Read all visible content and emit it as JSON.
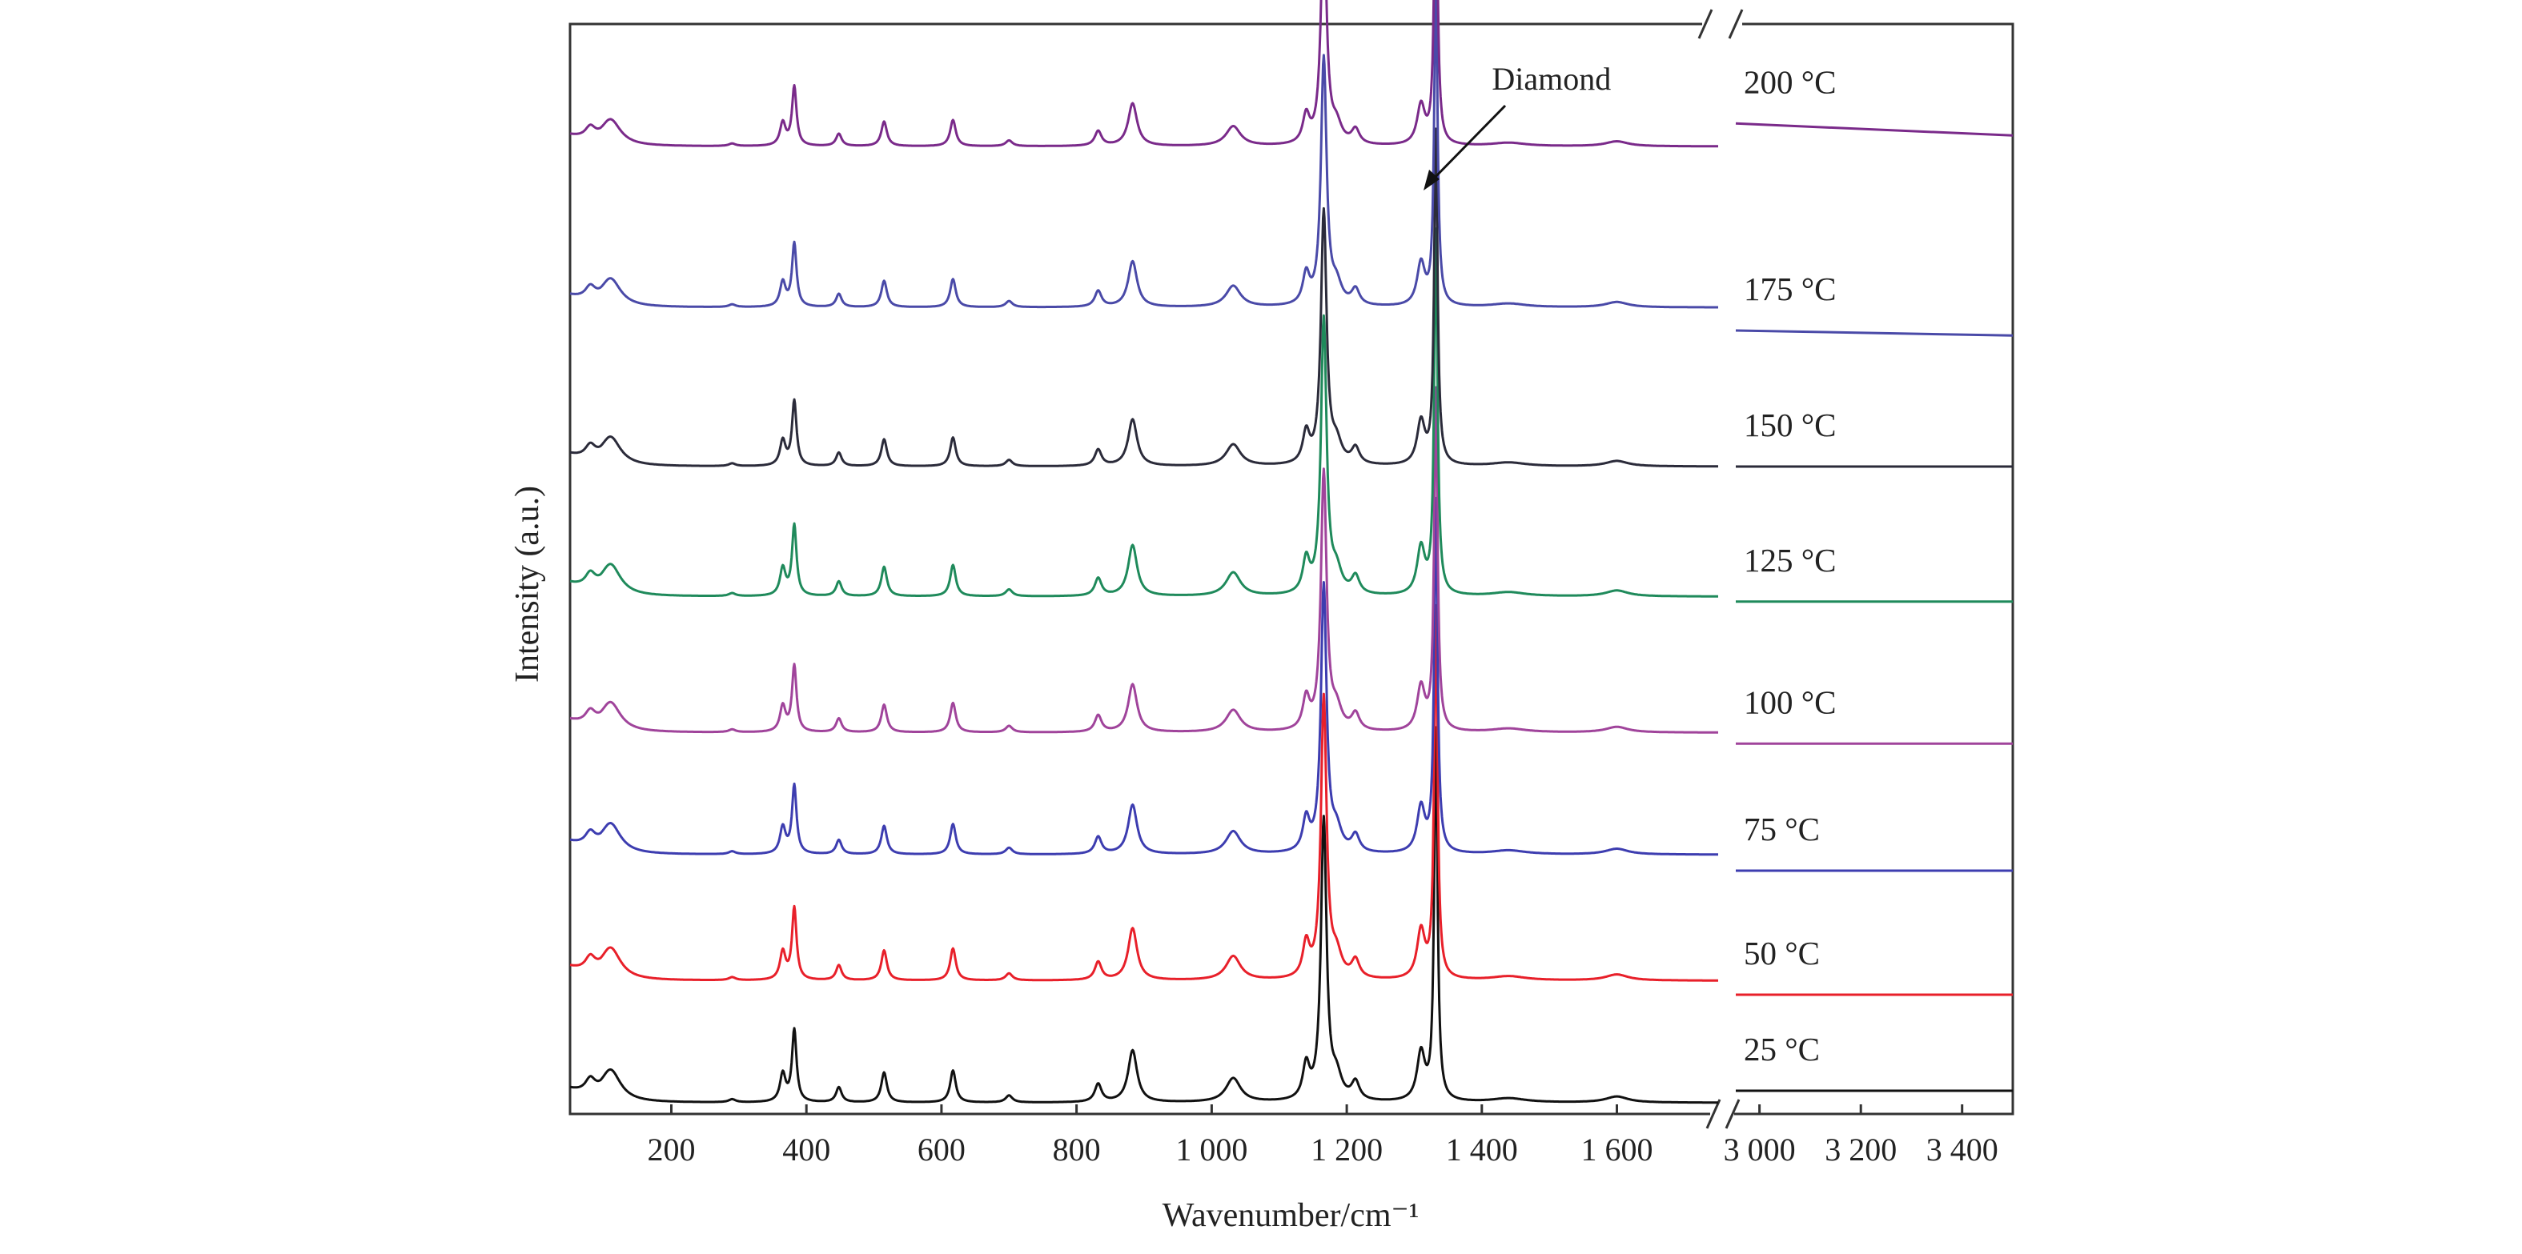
{
  "chart_data": {
    "type": "line",
    "title": "",
    "xlabel": "Wavenumber/cm⁻¹",
    "ylabel": "Intensity (a.u.)",
    "x_segments": [
      {
        "range": [
          50,
          1750
        ],
        "ticks": [
          200,
          400,
          600,
          800,
          1000,
          1200,
          1400,
          1600
        ],
        "tick_labels": [
          "200",
          "400",
          "600",
          "800",
          "1 000",
          "1 200",
          "1 400",
          "1 600"
        ]
      },
      {
        "range": [
          2950,
          3500
        ],
        "ticks": [
          3000,
          3200,
          3400
        ],
        "tick_labels": [
          "3 000",
          "3 200",
          "3 400"
        ]
      }
    ],
    "axis_break": "//",
    "y_ticks": [],
    "annotation": {
      "text": "Diamond",
      "x": 1332
    },
    "peaks": [
      {
        "x": 110,
        "h": 0.32,
        "w": 18
      },
      {
        "x": 80,
        "h": 0.14,
        "w": 9
      },
      {
        "x": 290,
        "h": 0.03,
        "w": 6
      },
      {
        "x": 365,
        "h": 0.28,
        "w": 5
      },
      {
        "x": 382,
        "h": 0.72,
        "w": 4
      },
      {
        "x": 448,
        "h": 0.15,
        "w": 5
      },
      {
        "x": 515,
        "h": 0.3,
        "w": 5
      },
      {
        "x": 617,
        "h": 0.32,
        "w": 5
      },
      {
        "x": 700,
        "h": 0.07,
        "w": 6
      },
      {
        "x": 832,
        "h": 0.18,
        "w": 6
      },
      {
        "x": 883,
        "h": 0.52,
        "w": 8
      },
      {
        "x": 1032,
        "h": 0.24,
        "w": 13
      },
      {
        "x": 1140,
        "h": 0.34,
        "w": 6
      },
      {
        "x": 1166,
        "h": 2.8,
        "w": 5
      },
      {
        "x": 1185,
        "h": 0.22,
        "w": 9
      },
      {
        "x": 1213,
        "h": 0.18,
        "w": 7
      },
      {
        "x": 1310,
        "h": 0.48,
        "w": 7
      },
      {
        "x": 1332,
        "h": 3.7,
        "w": 3
      },
      {
        "x": 1440,
        "h": 0.04,
        "w": 30
      },
      {
        "x": 1600,
        "h": 0.06,
        "w": 20
      }
    ],
    "series": [
      {
        "name": "25 °C",
        "color": "#111111",
        "offset": 0.0,
        "scale": 1.0,
        "tail_offset": 0.08,
        "tail_slope": 0.0
      },
      {
        "name": "50 °C",
        "color": "#e8202a",
        "offset": 1.22,
        "scale": 1.0,
        "tail_offset": 1.04,
        "tail_slope": 0.0
      },
      {
        "name": "75 °C",
        "color": "#3d3db0",
        "offset": 2.48,
        "scale": 0.95,
        "tail_offset": 2.28,
        "tail_slope": 0.0
      },
      {
        "name": "100 °C",
        "color": "#a0449b",
        "offset": 3.7,
        "scale": 0.92,
        "tail_offset": 3.55,
        "tail_slope": 0.0
      },
      {
        "name": "125 °C",
        "color": "#1f8a5b",
        "offset": 5.06,
        "scale": 0.98,
        "tail_offset": 4.97,
        "tail_slope": 0.0
      },
      {
        "name": "150 °C",
        "color": "#2b2b3a",
        "offset": 6.36,
        "scale": 0.9,
        "tail_offset": 6.32,
        "tail_slope": 0.0
      },
      {
        "name": "175 °C",
        "color": "#4a4aa8",
        "offset": 7.95,
        "scale": 0.88,
        "tail_offset": 7.68,
        "tail_slope": 0.05
      },
      {
        "name": "200 °C",
        "color": "#7a2a8a",
        "offset": 9.56,
        "scale": 0.82,
        "tail_offset": 9.75,
        "tail_slope": 0.12
      }
    ]
  }
}
